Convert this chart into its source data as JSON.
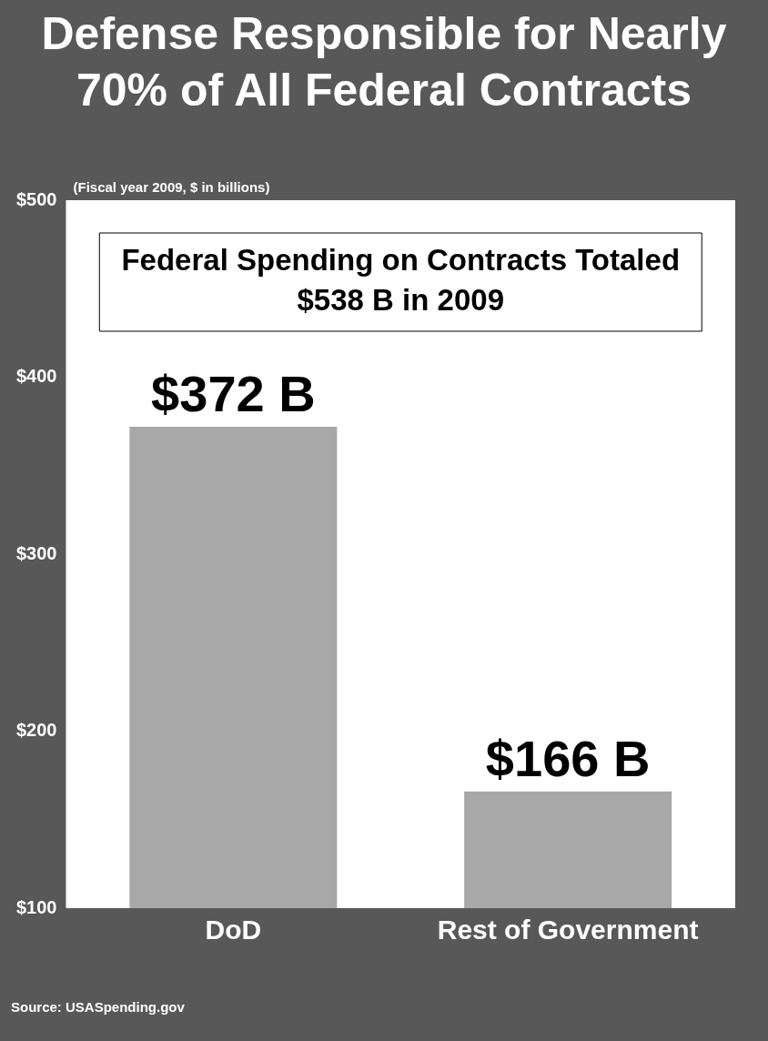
{
  "chart_data": {
    "type": "bar",
    "title": "Defense Responsible for Nearly 70% of All Federal Contracts",
    "subtitle": "(Fiscal year 2009, $ in billions)",
    "categories": [
      "DoD",
      "Rest of Government"
    ],
    "values": [
      372,
      166
    ],
    "value_labels": [
      "$372 B",
      "$166 B"
    ],
    "color": "#a8a8a8",
    "ylim": [
      100,
      500
    ],
    "yticks": [
      {
        "value": 100,
        "label": "$100"
      },
      {
        "value": 200,
        "label": "$200"
      },
      {
        "value": 300,
        "label": "$300"
      },
      {
        "value": 400,
        "label": "$400"
      },
      {
        "value": 500,
        "label": "$500"
      }
    ],
    "grid": false,
    "legend": false,
    "annotations": [
      "Federal Spending on Contracts Totaled $538 B in 2009",
      "Source:  USASpending.gov"
    ]
  }
}
